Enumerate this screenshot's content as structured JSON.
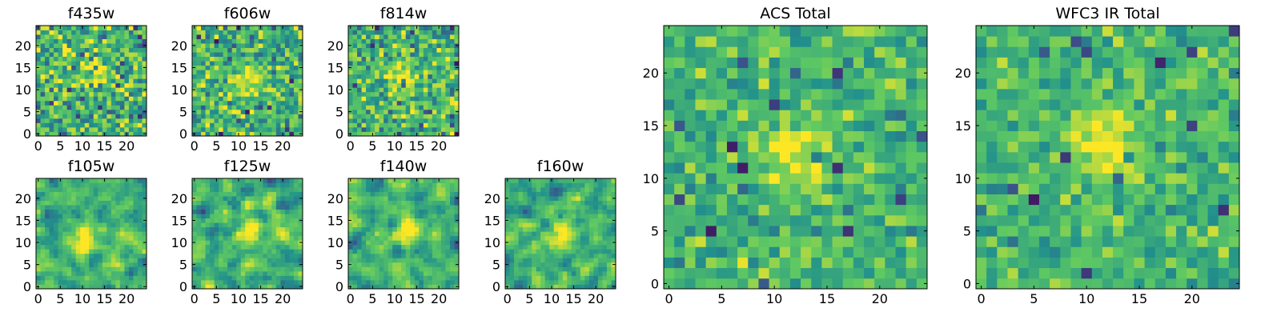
{
  "chart_data": {
    "type": "heatmap",
    "colormap": [
      "#440154",
      "#3b528b",
      "#21918c",
      "#5ec962",
      "#fde725"
    ],
    "value_range": [
      0,
      1
    ],
    "grid_size": [
      25,
      25
    ],
    "origin": "lower",
    "panels": [
      {
        "id": "f435w",
        "title": "f435w",
        "xticks": [
          0,
          5,
          10,
          15,
          20
        ],
        "yticks": [
          0,
          5,
          10,
          15,
          20
        ],
        "xlim": [
          -0.5,
          24.5
        ],
        "ylim": [
          -0.5,
          24.5
        ],
        "hot_spot": [
          12,
          13
        ],
        "noise_scale": 0.55,
        "smooth": 0,
        "seed": 11
      },
      {
        "id": "f606w",
        "title": "f606w",
        "xticks": [
          0,
          5,
          10,
          15,
          20
        ],
        "yticks": [
          0,
          5,
          10,
          15,
          20
        ],
        "xlim": [
          -0.5,
          24.5
        ],
        "ylim": [
          -0.5,
          24.5
        ],
        "hot_spot": [
          12,
          12
        ],
        "noise_scale": 0.5,
        "smooth": 0,
        "seed": 23
      },
      {
        "id": "f814w",
        "title": "f814w",
        "xticks": [
          0,
          5,
          10,
          15,
          20
        ],
        "yticks": [
          0,
          5,
          10,
          15,
          20
        ],
        "xlim": [
          -0.5,
          24.5
        ],
        "ylim": [
          -0.5,
          24.5
        ],
        "hot_spot": [
          12,
          13
        ],
        "noise_scale": 0.5,
        "smooth": 0,
        "seed": 37
      },
      {
        "id": "f105w",
        "title": "f105w",
        "xticks": [
          0,
          5,
          10,
          15,
          20
        ],
        "yticks": [
          0,
          5,
          10,
          15,
          20
        ],
        "xlim": [
          -0.5,
          24.5
        ],
        "ylim": [
          -0.5,
          24.5
        ],
        "hot_spot": [
          11,
          11
        ],
        "noise_scale": 0.45,
        "smooth": 1,
        "seed": 41
      },
      {
        "id": "f125w",
        "title": "f125w",
        "xticks": [
          0,
          5,
          10,
          15,
          20
        ],
        "yticks": [
          0,
          5,
          10,
          15,
          20
        ],
        "xlim": [
          -0.5,
          24.5
        ],
        "ylim": [
          -0.5,
          24.5
        ],
        "hot_spot": [
          12,
          12
        ],
        "noise_scale": 0.45,
        "smooth": 1,
        "seed": 53
      },
      {
        "id": "f140w",
        "title": "f140w",
        "xticks": [
          0,
          5,
          10,
          15,
          20
        ],
        "yticks": [
          0,
          5,
          10,
          15,
          20
        ],
        "xlim": [
          -0.5,
          24.5
        ],
        "ylim": [
          -0.5,
          24.5
        ],
        "hot_spot": [
          12,
          13
        ],
        "noise_scale": 0.45,
        "smooth": 1,
        "seed": 67
      },
      {
        "id": "f160w",
        "title": "f160w",
        "xticks": [
          0,
          5,
          10,
          15,
          20
        ],
        "yticks": [
          0,
          5,
          10,
          15,
          20
        ],
        "xlim": [
          -0.5,
          24.5
        ],
        "ylim": [
          -0.5,
          24.5
        ],
        "hot_spot": [
          12,
          12
        ],
        "noise_scale": 0.45,
        "smooth": 1,
        "seed": 79
      },
      {
        "id": "acs-total",
        "title": "ACS Total",
        "xticks": [
          0,
          5,
          10,
          15,
          20
        ],
        "yticks": [
          0,
          5,
          10,
          15,
          20
        ],
        "xlim": [
          -0.5,
          24.5
        ],
        "ylim": [
          -0.5,
          24.5
        ],
        "hot_spot": [
          12,
          12
        ],
        "noise_scale": 0.35,
        "smooth": 0,
        "seed": 97
      },
      {
        "id": "wfc3-ir-total",
        "title": "WFC3 IR Total",
        "xticks": [
          0,
          5,
          10,
          15,
          20
        ],
        "yticks": [
          0,
          5,
          10,
          15,
          20
        ],
        "xlim": [
          -0.5,
          24.5
        ],
        "ylim": [
          -0.5,
          24.5
        ],
        "hot_spot": [
          12,
          13
        ],
        "noise_scale": 0.32,
        "smooth": 0,
        "seed": 113
      }
    ]
  }
}
